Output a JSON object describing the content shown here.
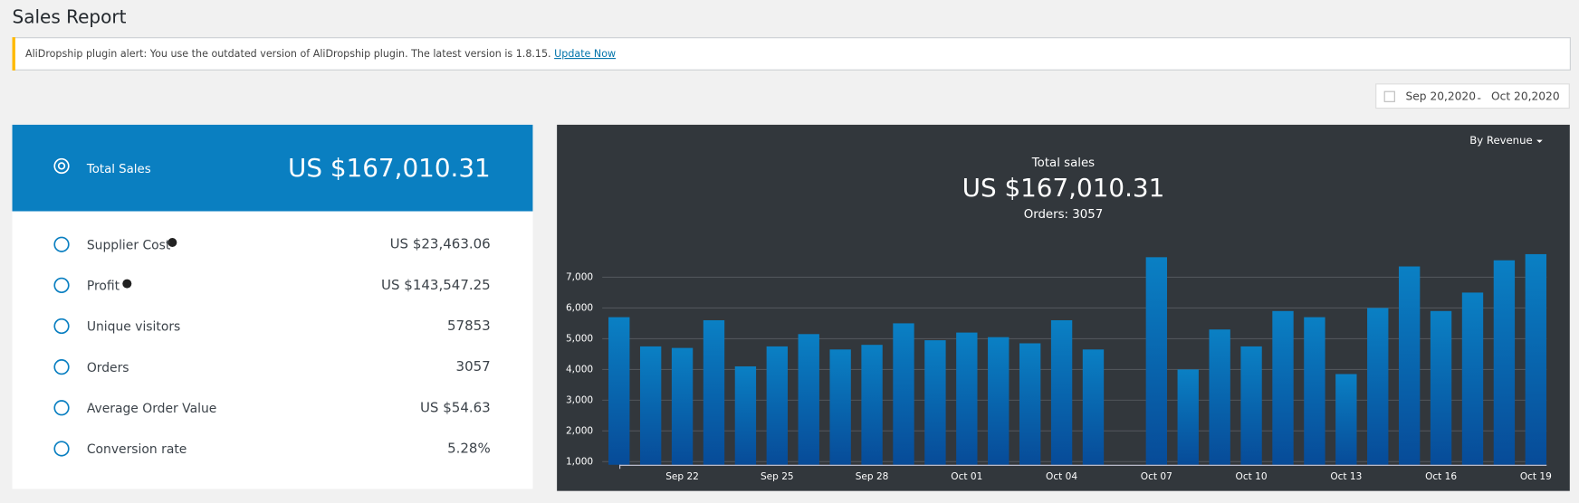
{
  "header": {
    "title": "Sales Report"
  },
  "alert": {
    "text": "AliDropship plugin alert: You use the outdated version of AliDropship plugin. The latest version is 1.8.15.",
    "link": "Update Now"
  },
  "date_range": {
    "from": "Sep 20,2020",
    "separator": "-",
    "to": "Oct 20,2020"
  },
  "summary": {
    "total": {
      "label": "Total Sales",
      "value": "US $167,010.31"
    },
    "rows": [
      {
        "label": "Supplier Cost",
        "value": "US $23,463.06"
      },
      {
        "label": "Profit",
        "value": "US $143,547.25"
      },
      {
        "label": "Unique visitors",
        "value": "57853"
      },
      {
        "label": "Orders",
        "value": "3057"
      },
      {
        "label": "Average Order Value",
        "value": "US $54.63"
      },
      {
        "label": "Conversion rate",
        "value": "5.28%"
      }
    ]
  },
  "chart_data": {
    "type": "bar",
    "dropdown": "By Revenue",
    "title": "Total sales",
    "subtitle": "US $167,010.31",
    "annotation": "Orders: 3057",
    "categories": [
      null,
      null,
      "Sep 22",
      null,
      null,
      "Sep 25",
      null,
      null,
      "Sep 28",
      null,
      null,
      "Oct 01",
      null,
      null,
      "Oct 04",
      null,
      null,
      "Oct 07",
      null,
      null,
      "Oct 10",
      null,
      null,
      "Oct 13",
      null,
      null,
      "Oct 16",
      null,
      null,
      "Oct 19"
    ],
    "values": [
      5700,
      4750,
      4700,
      5600,
      4100,
      4750,
      5150,
      4650,
      4800,
      5500,
      4950,
      5200,
      5050,
      4850,
      5600,
      4650,
      null,
      7650,
      4000,
      5300,
      4750,
      5900,
      5700,
      3850,
      6000,
      7350,
      5900,
      6500,
      7550,
      7750
    ],
    "color": "#0a80c4",
    "ylim": [
      900,
      8000
    ],
    "yticks": [
      {
        "value": 1000,
        "label": "1,000"
      },
      {
        "value": 2000,
        "label": "2,000"
      },
      {
        "value": 3000,
        "label": "3,000"
      },
      {
        "value": 4000,
        "label": "4,000"
      },
      {
        "value": 5000,
        "label": "5,000"
      },
      {
        "value": 6000,
        "label": "6,000"
      },
      {
        "value": 7000,
        "label": "7,000"
      }
    ],
    "grid": true
  }
}
